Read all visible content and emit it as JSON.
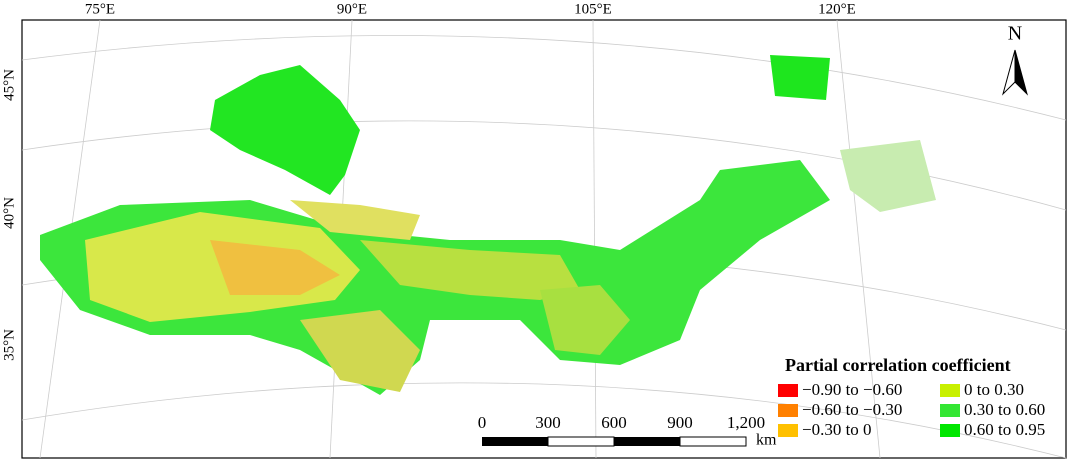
{
  "map": {
    "lon_labels": [
      "75°E",
      "90°E",
      "105°E",
      "120°E"
    ],
    "lat_labels": [
      "45°N",
      "40°N",
      "35°N"
    ],
    "north": "N",
    "legend": {
      "title": "Partial correlation coefficient",
      "items": [
        {
          "label": "−0.90 to −0.60",
          "color": "#ff0000"
        },
        {
          "label": "−0.60 to −0.30",
          "color": "#ff8000"
        },
        {
          "label": "−0.30 to 0",
          "color": "#ffc000"
        },
        {
          "label": "0  to 0.30",
          "color": "#c8f000"
        },
        {
          "label": "0.30 to 0.60",
          "color": "#33e633"
        },
        {
          "label": "0.60 to 0.95",
          "color": "#00e600"
        }
      ]
    },
    "scale": {
      "labels": [
        "0",
        "300",
        "600",
        "900",
        "1,200"
      ],
      "unit": "km"
    }
  }
}
